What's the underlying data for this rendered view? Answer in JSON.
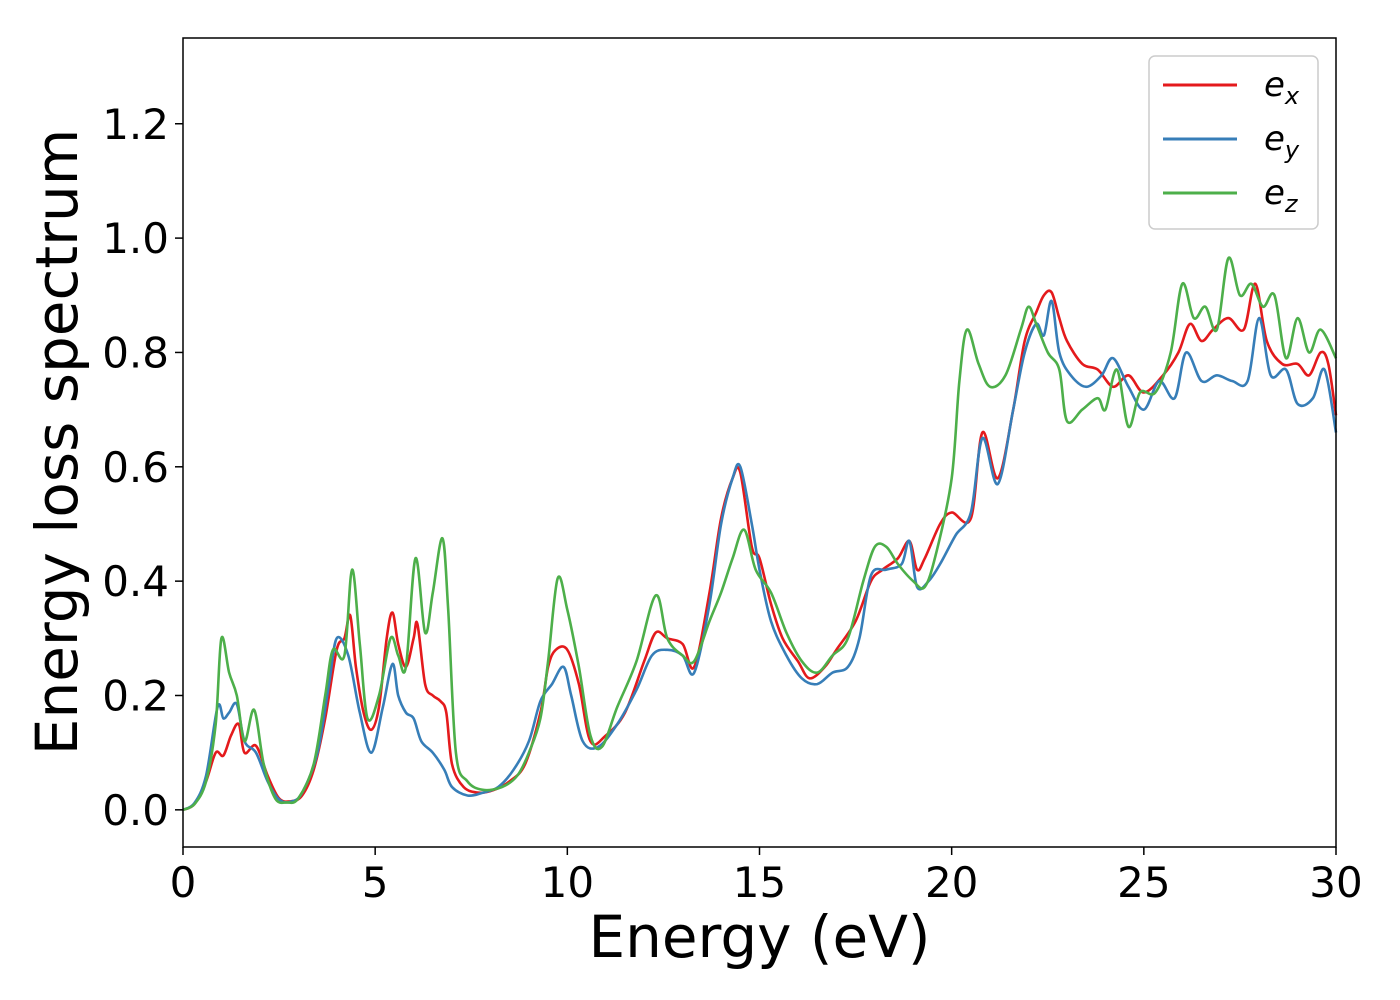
{
  "chart_data": {
    "type": "line",
    "xlabel": "Energy (eV)",
    "ylabel": "Energy loss spectrum",
    "xlim": [
      0,
      30
    ],
    "ylim": [
      -0.065,
      1.35
    ],
    "xticks": [
      "0",
      "5",
      "10",
      "15",
      "20",
      "25",
      "30"
    ],
    "yticks": [
      "0.0",
      "0.2",
      "0.4",
      "0.6",
      "0.8",
      "1.0",
      "1.2"
    ],
    "grid": false,
    "legend_position": "top-right",
    "series": [
      {
        "name": "e_x",
        "legend_base": "e",
        "legend_sub": "x",
        "color": "#e41a1c",
        "points": [
          [
            0,
            0
          ],
          [
            0.3,
            0.01
          ],
          [
            0.6,
            0.05
          ],
          [
            0.85,
            0.1
          ],
          [
            1.05,
            0.095
          ],
          [
            1.25,
            0.13
          ],
          [
            1.45,
            0.15
          ],
          [
            1.6,
            0.1
          ],
          [
            1.9,
            0.112
          ],
          [
            2.2,
            0.06
          ],
          [
            2.5,
            0.02
          ],
          [
            2.8,
            0.015
          ],
          [
            3.1,
            0.025
          ],
          [
            3.4,
            0.07
          ],
          [
            3.7,
            0.16
          ],
          [
            4.0,
            0.28
          ],
          [
            4.2,
            0.3
          ],
          [
            4.35,
            0.34
          ],
          [
            4.5,
            0.25
          ],
          [
            4.7,
            0.17
          ],
          [
            4.9,
            0.14
          ],
          [
            5.1,
            0.18
          ],
          [
            5.3,
            0.3
          ],
          [
            5.45,
            0.345
          ],
          [
            5.6,
            0.29
          ],
          [
            5.8,
            0.25
          ],
          [
            6.0,
            0.3
          ],
          [
            6.1,
            0.325
          ],
          [
            6.3,
            0.22
          ],
          [
            6.5,
            0.2
          ],
          [
            6.7,
            0.19
          ],
          [
            6.85,
            0.17
          ],
          [
            7.0,
            0.08
          ],
          [
            7.3,
            0.04
          ],
          [
            7.7,
            0.03
          ],
          [
            8.1,
            0.035
          ],
          [
            8.5,
            0.05
          ],
          [
            8.9,
            0.08
          ],
          [
            9.3,
            0.17
          ],
          [
            9.5,
            0.25
          ],
          [
            9.7,
            0.28
          ],
          [
            10.0,
            0.28
          ],
          [
            10.3,
            0.22
          ],
          [
            10.6,
            0.12
          ],
          [
            11.0,
            0.13
          ],
          [
            11.5,
            0.17
          ],
          [
            12.0,
            0.26
          ],
          [
            12.3,
            0.31
          ],
          [
            12.6,
            0.3
          ],
          [
            13.0,
            0.29
          ],
          [
            13.3,
            0.25
          ],
          [
            13.7,
            0.38
          ],
          [
            14.0,
            0.51
          ],
          [
            14.3,
            0.58
          ],
          [
            14.5,
            0.59
          ],
          [
            14.8,
            0.46
          ],
          [
            15.0,
            0.44
          ],
          [
            15.3,
            0.36
          ],
          [
            15.6,
            0.3
          ],
          [
            16.0,
            0.26
          ],
          [
            16.3,
            0.23
          ],
          [
            16.7,
            0.25
          ],
          [
            17.0,
            0.28
          ],
          [
            17.5,
            0.33
          ],
          [
            17.9,
            0.4
          ],
          [
            18.2,
            0.42
          ],
          [
            18.6,
            0.44
          ],
          [
            18.9,
            0.47
          ],
          [
            19.1,
            0.42
          ],
          [
            19.3,
            0.44
          ],
          [
            19.7,
            0.5
          ],
          [
            20.0,
            0.52
          ],
          [
            20.5,
            0.51
          ],
          [
            20.8,
            0.66
          ],
          [
            21.2,
            0.58
          ],
          [
            21.6,
            0.7
          ],
          [
            21.9,
            0.82
          ],
          [
            22.2,
            0.87
          ],
          [
            22.4,
            0.9
          ],
          [
            22.6,
            0.905
          ],
          [
            22.8,
            0.86
          ],
          [
            23.0,
            0.82
          ],
          [
            23.4,
            0.78
          ],
          [
            23.8,
            0.77
          ],
          [
            24.2,
            0.74
          ],
          [
            24.6,
            0.76
          ],
          [
            25.0,
            0.73
          ],
          [
            25.5,
            0.76
          ],
          [
            25.9,
            0.8
          ],
          [
            26.2,
            0.85
          ],
          [
            26.5,
            0.82
          ],
          [
            26.8,
            0.84
          ],
          [
            27.2,
            0.86
          ],
          [
            27.6,
            0.84
          ],
          [
            27.9,
            0.92
          ],
          [
            28.2,
            0.82
          ],
          [
            28.6,
            0.78
          ],
          [
            29.0,
            0.78
          ],
          [
            29.3,
            0.76
          ],
          [
            29.6,
            0.8
          ],
          [
            29.8,
            0.78
          ],
          [
            30.0,
            0.69
          ]
        ]
      },
      {
        "name": "e_y",
        "legend_base": "e",
        "legend_sub": "y",
        "color": "#377eb8",
        "points": [
          [
            0,
            0
          ],
          [
            0.3,
            0.012
          ],
          [
            0.6,
            0.06
          ],
          [
            0.9,
            0.18
          ],
          [
            1.05,
            0.16
          ],
          [
            1.2,
            0.17
          ],
          [
            1.4,
            0.185
          ],
          [
            1.6,
            0.12
          ],
          [
            1.9,
            0.1
          ],
          [
            2.2,
            0.05
          ],
          [
            2.5,
            0.018
          ],
          [
            2.8,
            0.014
          ],
          [
            3.1,
            0.03
          ],
          [
            3.5,
            0.1
          ],
          [
            3.8,
            0.22
          ],
          [
            4.0,
            0.3
          ],
          [
            4.3,
            0.27
          ],
          [
            4.6,
            0.17
          ],
          [
            4.9,
            0.1
          ],
          [
            5.2,
            0.18
          ],
          [
            5.45,
            0.255
          ],
          [
            5.6,
            0.2
          ],
          [
            5.8,
            0.17
          ],
          [
            6.0,
            0.16
          ],
          [
            6.2,
            0.12
          ],
          [
            6.5,
            0.1
          ],
          [
            6.8,
            0.07
          ],
          [
            7.0,
            0.04
          ],
          [
            7.4,
            0.025
          ],
          [
            7.8,
            0.03
          ],
          [
            8.2,
            0.04
          ],
          [
            8.6,
            0.07
          ],
          [
            9.0,
            0.12
          ],
          [
            9.3,
            0.19
          ],
          [
            9.6,
            0.22
          ],
          [
            9.9,
            0.25
          ],
          [
            10.1,
            0.2
          ],
          [
            10.4,
            0.12
          ],
          [
            10.8,
            0.11
          ],
          [
            11.3,
            0.15
          ],
          [
            11.8,
            0.21
          ],
          [
            12.2,
            0.27
          ],
          [
            12.6,
            0.28
          ],
          [
            13.0,
            0.27
          ],
          [
            13.3,
            0.24
          ],
          [
            13.7,
            0.36
          ],
          [
            14.0,
            0.5
          ],
          [
            14.3,
            0.58
          ],
          [
            14.5,
            0.6
          ],
          [
            14.8,
            0.5
          ],
          [
            15.0,
            0.42
          ],
          [
            15.3,
            0.33
          ],
          [
            15.7,
            0.27
          ],
          [
            16.1,
            0.23
          ],
          [
            16.5,
            0.22
          ],
          [
            16.9,
            0.24
          ],
          [
            17.3,
            0.25
          ],
          [
            17.6,
            0.3
          ],
          [
            17.9,
            0.41
          ],
          [
            18.3,
            0.42
          ],
          [
            18.7,
            0.43
          ],
          [
            18.9,
            0.47
          ],
          [
            19.1,
            0.39
          ],
          [
            19.4,
            0.4
          ],
          [
            19.7,
            0.43
          ],
          [
            20.1,
            0.48
          ],
          [
            20.5,
            0.52
          ],
          [
            20.8,
            0.65
          ],
          [
            21.2,
            0.57
          ],
          [
            21.6,
            0.7
          ],
          [
            21.9,
            0.8
          ],
          [
            22.2,
            0.85
          ],
          [
            22.4,
            0.83
          ],
          [
            22.6,
            0.89
          ],
          [
            22.8,
            0.8
          ],
          [
            23.1,
            0.76
          ],
          [
            23.5,
            0.74
          ],
          [
            23.9,
            0.76
          ],
          [
            24.2,
            0.79
          ],
          [
            24.6,
            0.74
          ],
          [
            25.0,
            0.7
          ],
          [
            25.4,
            0.75
          ],
          [
            25.8,
            0.72
          ],
          [
            26.1,
            0.8
          ],
          [
            26.5,
            0.75
          ],
          [
            26.9,
            0.76
          ],
          [
            27.3,
            0.75
          ],
          [
            27.7,
            0.75
          ],
          [
            28.0,
            0.86
          ],
          [
            28.3,
            0.76
          ],
          [
            28.7,
            0.77
          ],
          [
            29.0,
            0.71
          ],
          [
            29.4,
            0.72
          ],
          [
            29.7,
            0.77
          ],
          [
            30.0,
            0.66
          ]
        ]
      },
      {
        "name": "e_z",
        "legend_base": "e",
        "legend_sub": "z",
        "color": "#4daf4a",
        "points": [
          [
            0,
            0
          ],
          [
            0.3,
            0.01
          ],
          [
            0.6,
            0.05
          ],
          [
            0.85,
            0.15
          ],
          [
            1.0,
            0.3
          ],
          [
            1.2,
            0.24
          ],
          [
            1.4,
            0.2
          ],
          [
            1.6,
            0.12
          ],
          [
            1.85,
            0.175
          ],
          [
            2.1,
            0.08
          ],
          [
            2.4,
            0.02
          ],
          [
            2.7,
            0.013
          ],
          [
            3.0,
            0.02
          ],
          [
            3.4,
            0.08
          ],
          [
            3.7,
            0.2
          ],
          [
            3.9,
            0.28
          ],
          [
            4.2,
            0.27
          ],
          [
            4.4,
            0.42
          ],
          [
            4.6,
            0.29
          ],
          [
            4.8,
            0.16
          ],
          [
            5.1,
            0.2
          ],
          [
            5.4,
            0.3
          ],
          [
            5.6,
            0.27
          ],
          [
            5.8,
            0.25
          ],
          [
            6.05,
            0.44
          ],
          [
            6.3,
            0.31
          ],
          [
            6.5,
            0.38
          ],
          [
            6.75,
            0.475
          ],
          [
            6.9,
            0.35
          ],
          [
            7.1,
            0.1
          ],
          [
            7.4,
            0.05
          ],
          [
            7.8,
            0.035
          ],
          [
            8.3,
            0.04
          ],
          [
            8.7,
            0.06
          ],
          [
            9.0,
            0.1
          ],
          [
            9.3,
            0.16
          ],
          [
            9.5,
            0.26
          ],
          [
            9.75,
            0.405
          ],
          [
            10.0,
            0.35
          ],
          [
            10.3,
            0.25
          ],
          [
            10.6,
            0.13
          ],
          [
            10.9,
            0.11
          ],
          [
            11.3,
            0.18
          ],
          [
            11.8,
            0.26
          ],
          [
            12.3,
            0.375
          ],
          [
            12.6,
            0.3
          ],
          [
            13.0,
            0.27
          ],
          [
            13.3,
            0.26
          ],
          [
            13.7,
            0.33
          ],
          [
            14.0,
            0.38
          ],
          [
            14.3,
            0.44
          ],
          [
            14.6,
            0.49
          ],
          [
            14.9,
            0.42
          ],
          [
            15.3,
            0.38
          ],
          [
            15.7,
            0.31
          ],
          [
            16.1,
            0.26
          ],
          [
            16.5,
            0.24
          ],
          [
            16.9,
            0.27
          ],
          [
            17.3,
            0.3
          ],
          [
            17.7,
            0.4
          ],
          [
            18.0,
            0.46
          ],
          [
            18.3,
            0.46
          ],
          [
            18.6,
            0.43
          ],
          [
            19.0,
            0.4
          ],
          [
            19.3,
            0.39
          ],
          [
            19.6,
            0.45
          ],
          [
            20.0,
            0.58
          ],
          [
            20.2,
            0.75
          ],
          [
            20.4,
            0.84
          ],
          [
            20.7,
            0.78
          ],
          [
            21.0,
            0.74
          ],
          [
            21.4,
            0.76
          ],
          [
            21.8,
            0.84
          ],
          [
            22.0,
            0.88
          ],
          [
            22.2,
            0.85
          ],
          [
            22.5,
            0.8
          ],
          [
            22.8,
            0.77
          ],
          [
            23.0,
            0.68
          ],
          [
            23.4,
            0.7
          ],
          [
            23.8,
            0.72
          ],
          [
            24.0,
            0.7
          ],
          [
            24.3,
            0.77
          ],
          [
            24.6,
            0.67
          ],
          [
            24.9,
            0.73
          ],
          [
            25.3,
            0.73
          ],
          [
            25.7,
            0.8
          ],
          [
            26.0,
            0.92
          ],
          [
            26.3,
            0.86
          ],
          [
            26.6,
            0.88
          ],
          [
            26.9,
            0.84
          ],
          [
            27.2,
            0.965
          ],
          [
            27.5,
            0.9
          ],
          [
            27.8,
            0.92
          ],
          [
            28.1,
            0.88
          ],
          [
            28.4,
            0.9
          ],
          [
            28.7,
            0.79
          ],
          [
            29.0,
            0.86
          ],
          [
            29.3,
            0.8
          ],
          [
            29.6,
            0.84
          ],
          [
            30.0,
            0.79
          ]
        ]
      }
    ]
  }
}
